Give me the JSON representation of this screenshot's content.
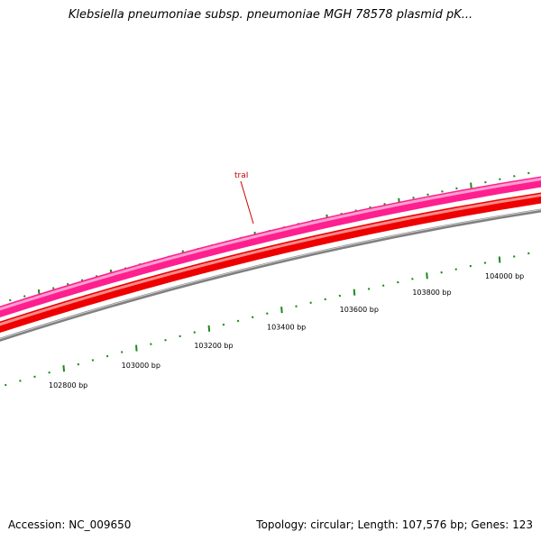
{
  "header": {
    "title": "Klebsiella pneumoniae subsp. pneumoniae MGH 78578 plasmid pK..."
  },
  "footer": {
    "accession": "Accession: NC_009650",
    "summary": "Topology: circular; Length: 107,576 bp; Genes: 123"
  },
  "map": {
    "colors": {
      "forward_cds": "#ff1f8f",
      "forward_cds_highlight": "#ff9fd0",
      "reverse_cds": "#ee0000",
      "reverse_cds_highlight": "#ff8a8a",
      "backbone": "#808080",
      "backbone_highlight": "#d0d0d0",
      "ticks": "#1a8a1a",
      "gene_label": "#cc0000"
    },
    "scale_labels": [
      {
        "bp": 102800,
        "text": "102800 bp"
      },
      {
        "bp": 103000,
        "text": "103000 bp"
      },
      {
        "bp": 103200,
        "text": "103200 bp"
      },
      {
        "bp": 103400,
        "text": "103400 bp"
      },
      {
        "bp": 103600,
        "text": "103600 bp"
      },
      {
        "bp": 103800,
        "text": "103800 bp"
      },
      {
        "bp": 104000,
        "text": "104000 bp"
      }
    ],
    "genes": [
      {
        "name": "traI",
        "strand": "forward"
      }
    ]
  }
}
